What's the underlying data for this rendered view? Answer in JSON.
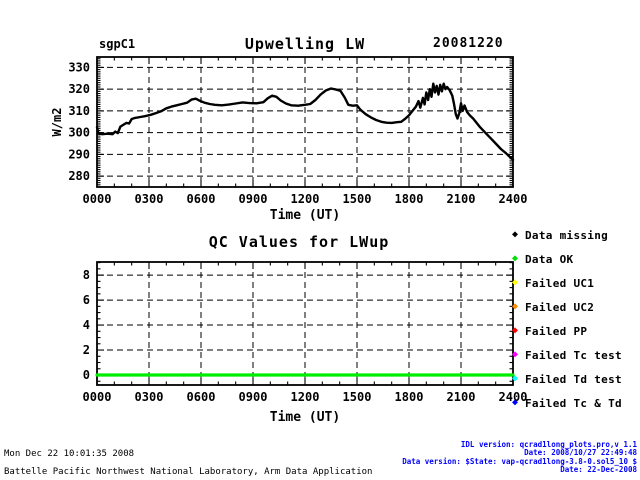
{
  "page": {
    "background": "#ffffff"
  },
  "chart_data": [
    {
      "type": "line",
      "station": "sgpC1",
      "title": "Upwelling LW",
      "date_label": "20081220",
      "xlabel": "Time (UT)",
      "ylabel": "W/m2",
      "xlim": [
        0,
        24
      ],
      "ylim": [
        275,
        334.8
      ],
      "minor_x": 1,
      "minor_y": 1,
      "grid": "dashed",
      "xticks": {
        "values": [
          0,
          3,
          6,
          9,
          12,
          15,
          18,
          21,
          24
        ],
        "labels": [
          "0000",
          "0300",
          "0600",
          "0900",
          "1200",
          "1500",
          "1800",
          "2100",
          "2400"
        ]
      },
      "yticks": {
        "values": [
          280,
          290,
          300,
          310,
          320,
          330
        ],
        "labels": [
          "280",
          "290",
          "300",
          "310",
          "320",
          "330"
        ]
      },
      "series": [
        {
          "name": "lwup-series-line",
          "color": "#000000",
          "width": 2.4,
          "x": [
            0,
            0.08,
            0.3,
            0.6,
            0.9,
            1.05,
            1.2,
            1.35,
            1.5,
            1.7,
            1.85,
            2.0,
            2.2,
            2.5,
            2.8,
            3.1,
            3.4,
            3.7,
            4.0,
            4.3,
            4.6,
            4.9,
            5.2,
            5.45,
            5.7,
            5.95,
            6.2,
            6.5,
            6.8,
            7.2,
            7.6,
            8.0,
            8.4,
            8.8,
            9.2,
            9.6,
            9.85,
            10.1,
            10.35,
            10.6,
            10.9,
            11.2,
            11.6,
            12.0,
            12.3,
            12.6,
            12.9,
            13.2,
            13.5,
            13.8,
            14.05,
            14.3,
            14.5,
            14.75,
            15.0,
            15.2,
            15.5,
            15.8,
            16.1,
            16.4,
            16.7,
            17.0,
            17.3,
            17.55,
            17.8,
            18.0,
            18.2,
            18.4,
            18.55,
            18.65,
            18.8,
            18.9,
            19.0,
            19.1,
            19.2,
            19.3,
            19.4,
            19.5,
            19.6,
            19.7,
            19.8,
            19.9,
            20.0,
            20.1,
            20.2,
            20.35,
            20.5,
            20.6,
            20.7,
            20.8,
            20.9,
            21.0,
            21.1,
            21.2,
            21.35,
            21.5,
            21.7,
            21.9,
            22.1,
            22.4,
            22.7,
            23.0,
            23.3,
            23.6,
            23.8,
            24.0
          ],
          "y": [
            302.5,
            299.8,
            299.3,
            299.5,
            299.3,
            300.5,
            299.8,
            302.8,
            303.5,
            304.5,
            304.2,
            306.3,
            306.8,
            307.2,
            307.6,
            308.2,
            309.0,
            309.8,
            311.2,
            312.0,
            312.6,
            313.2,
            313.8,
            315.2,
            315.6,
            314.6,
            313.8,
            313.2,
            312.8,
            312.6,
            312.9,
            313.4,
            313.9,
            313.6,
            313.5,
            314.0,
            315.8,
            317.0,
            316.5,
            314.8,
            313.4,
            312.6,
            312.4,
            312.8,
            313.2,
            315.0,
            317.5,
            319.4,
            320.3,
            319.8,
            319.2,
            316.0,
            312.8,
            312.4,
            312.6,
            310.5,
            308.5,
            307.0,
            305.8,
            305.0,
            304.6,
            304.5,
            304.8,
            305.0,
            306.5,
            308.0,
            310.0,
            312.0,
            314.5,
            311.5,
            316.0,
            313.0,
            318.5,
            315.0,
            320.0,
            316.5,
            322.5,
            318.5,
            321.5,
            317.5,
            322.0,
            319.0,
            322.5,
            320.0,
            321.0,
            319.5,
            317.0,
            313.0,
            308.5,
            306.5,
            309.0,
            313.5,
            310.0,
            312.5,
            309.5,
            308.0,
            306.5,
            304.5,
            302.5,
            300.0,
            297.5,
            295.0,
            292.5,
            290.5,
            289.0,
            287.5
          ]
        }
      ]
    },
    {
      "type": "line",
      "title": "QC Values for LWup",
      "xlabel": "Time (UT)",
      "ylabel": "",
      "xlim": [
        0,
        24
      ],
      "ylim": [
        -0.8,
        9.05
      ],
      "minor_x": 1,
      "minor_y": 0.5,
      "grid": "dashed",
      "xticks": {
        "values": [
          0,
          3,
          6,
          9,
          12,
          15,
          18,
          21,
          24
        ],
        "labels": [
          "0000",
          "0300",
          "0600",
          "0900",
          "1200",
          "1500",
          "1800",
          "2100",
          "2400"
        ]
      },
      "yticks": {
        "values": [
          0,
          2,
          4,
          6,
          8
        ],
        "labels": [
          "0",
          "2",
          "4",
          "6",
          "8"
        ]
      },
      "series": [
        {
          "name": "qc-series-line",
          "color": "#00ee00",
          "width": 3.2,
          "x": [
            0,
            24
          ],
          "y": [
            0,
            0
          ]
        }
      ]
    }
  ],
  "legend": {
    "marker": "◆",
    "items": [
      {
        "label": "Data missing",
        "color": "#000000"
      },
      {
        "label": "Data OK",
        "color": "#00dd00"
      },
      {
        "label": "Failed UC1",
        "color": "#ffff00"
      },
      {
        "label": "Failed UC2",
        "color": "#ff8800"
      },
      {
        "label": "Failed PP",
        "color": "#ff0000"
      },
      {
        "label": "Failed Tc test",
        "color": "#ff00ff"
      },
      {
        "label": "Failed Td test",
        "color": "#00ffff"
      },
      {
        "label": "Failed Tc & Td",
        "color": "#0000ff"
      }
    ]
  },
  "footer": {
    "left_lines": [
      "Mon Dec 22 10:01:35 2008",
      "Battelle Pacific Northwest National Laboratory, Arm Data Application"
    ],
    "right_color": "#0000ff",
    "right_lines": [
      "IDL version: qcrad1long_plots.pro,v 1.1",
      "Date: 2008/10/27 22:49:48",
      "Data version: $State: vap-qcrad1long-3.8-0.sol5_10 $",
      "Date: 22-Dec-2008"
    ]
  }
}
